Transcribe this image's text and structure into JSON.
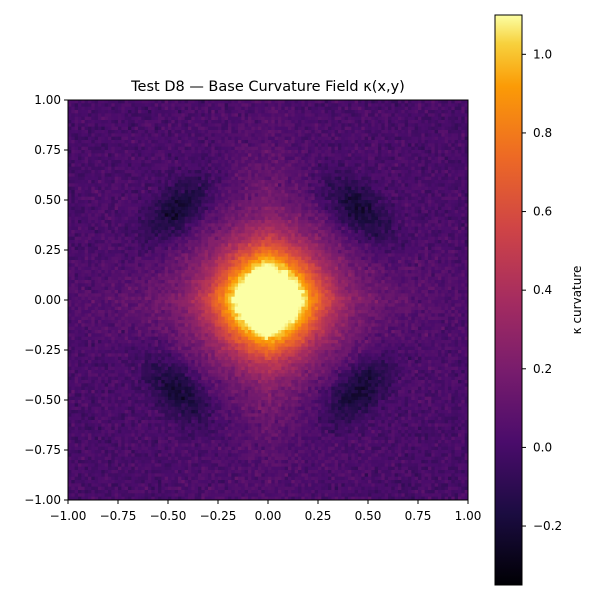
{
  "chart_data": {
    "type": "heatmap",
    "title": "Test D8 — Base Curvature Field κ(x,y)",
    "xlabel": "",
    "ylabel": "",
    "xlim": [
      -1.0,
      1.0
    ],
    "ylim": [
      -1.0,
      1.0
    ],
    "x_ticks": [
      "−1.00",
      "−0.75",
      "−0.50",
      "−0.25",
      "0.00",
      "0.25",
      "0.50",
      "0.75",
      "1.00"
    ],
    "y_ticks": [
      "−1.00",
      "−0.75",
      "−0.50",
      "−0.25",
      "0.00",
      "0.25",
      "0.50",
      "0.75",
      "1.00"
    ],
    "colormap": "inferno",
    "colorbar": {
      "label": "κ curvature",
      "range": [
        -0.35,
        1.1
      ],
      "ticks": [
        "−0.2",
        "0.0",
        "0.2",
        "0.4",
        "0.6",
        "0.8",
        "1.0"
      ]
    },
    "field_features": {
      "center_peak": 1.0,
      "background_level": 0.0,
      "dark_lobes": [
        {
          "x": -0.45,
          "y": 0.45,
          "value": -0.25
        },
        {
          "x": 0.45,
          "y": 0.45,
          "value": -0.25
        },
        {
          "x": -0.45,
          "y": -0.45,
          "value": -0.25
        },
        {
          "x": 0.45,
          "y": -0.45,
          "value": -0.25
        }
      ],
      "grid_resolution": 120,
      "noise": 0.07
    }
  }
}
